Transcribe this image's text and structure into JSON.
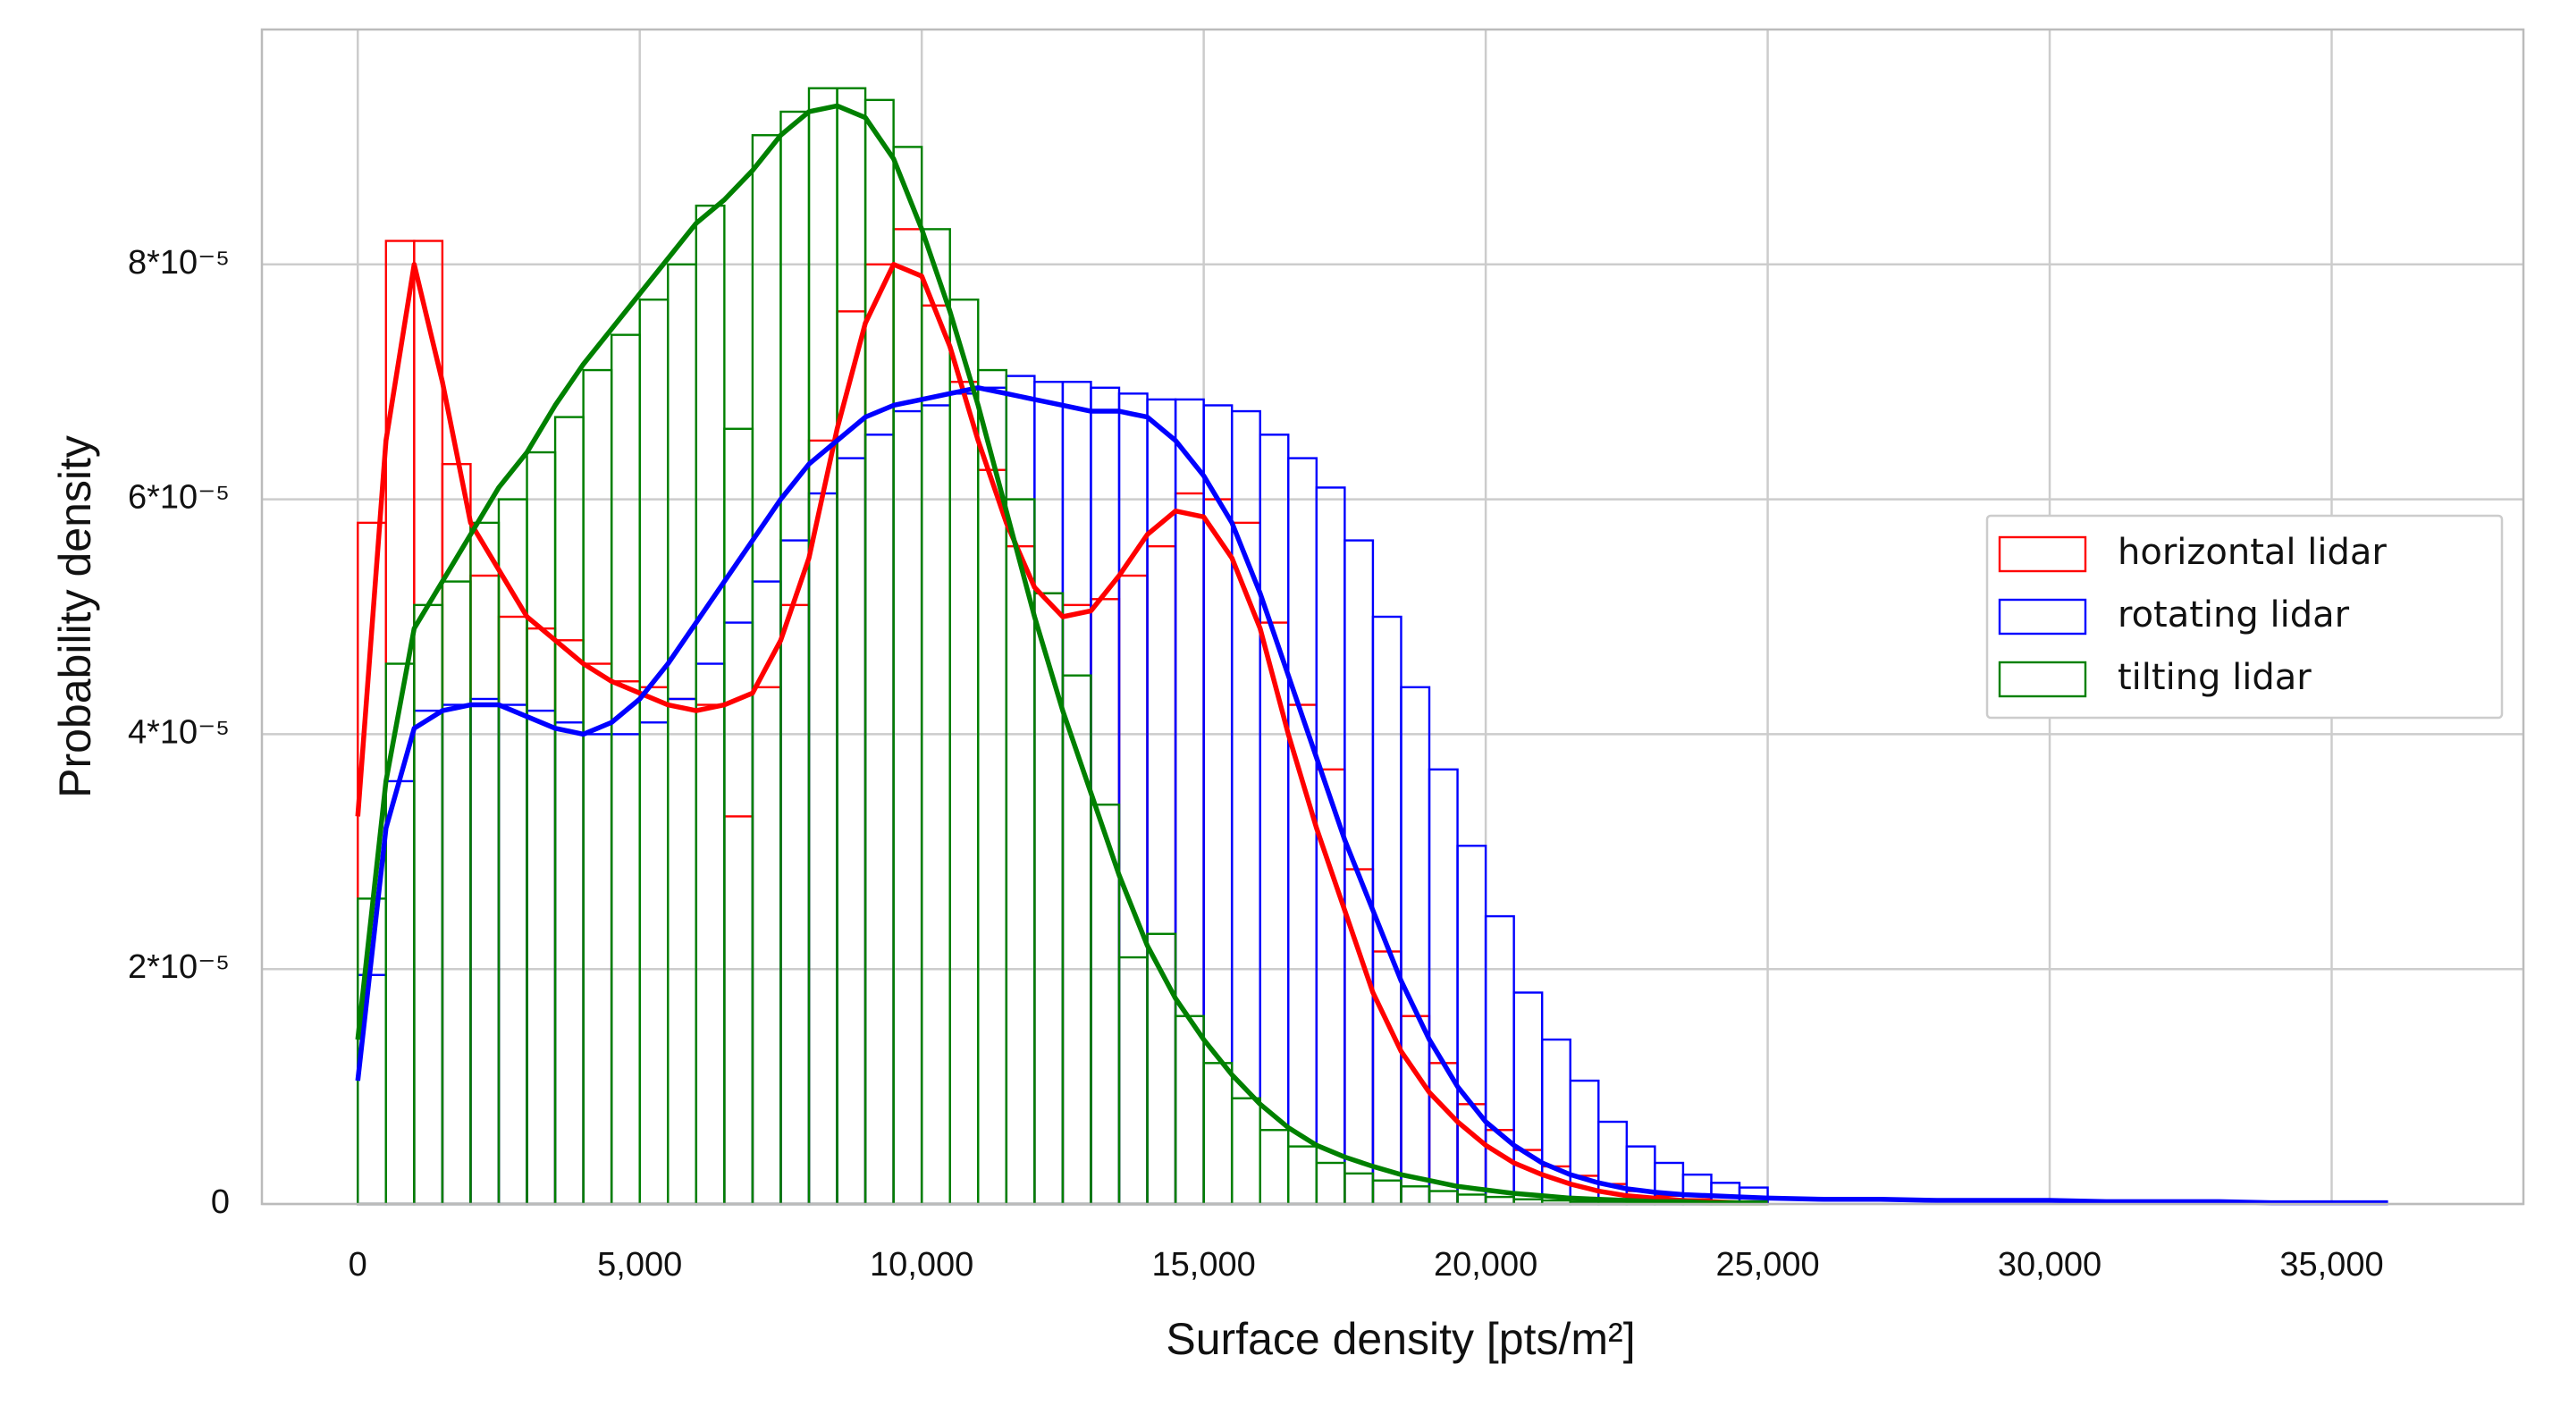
{
  "chart_data": {
    "type": "histogram",
    "xlabel": "Surface density [pts/m²]",
    "ylabel": "Probability density",
    "bins": [
      0,
      500,
      1000,
      1500,
      2000,
      2500,
      3000,
      3500,
      4000,
      4500,
      5000,
      5500,
      6000,
      6500,
      7000,
      7500,
      8000,
      8500,
      9000,
      9500,
      10000,
      10500,
      11000,
      11500,
      12000,
      12500,
      13000,
      13500,
      14000,
      14500,
      15000,
      15500,
      16000,
      16500,
      17000,
      17500,
      18000,
      18500,
      19000,
      19500,
      20000,
      20500,
      21000,
      21500,
      22000,
      22500,
      23000,
      23500,
      24000,
      24500,
      25000
    ],
    "series": [
      {
        "name": "horizontal lidar",
        "color": "#ff0000",
        "values": [
          5.8e-05,
          8.2e-05,
          8.2e-05,
          6.3e-05,
          5.35e-05,
          5e-05,
          4.9e-05,
          4.8e-05,
          4.6e-05,
          4.45e-05,
          4.4e-05,
          4.3e-05,
          4.25e-05,
          3.3e-05,
          4.4e-05,
          5.1e-05,
          6.5e-05,
          7.6e-05,
          8e-05,
          8.3e-05,
          7.65e-05,
          7e-05,
          6.25e-05,
          5.6e-05,
          5.2e-05,
          5.1e-05,
          5.15e-05,
          5.35e-05,
          5.6e-05,
          6.05e-05,
          6e-05,
          5.8e-05,
          4.95e-05,
          4.25e-05,
          3.7e-05,
          2.85e-05,
          2.15e-05,
          1.6e-05,
          1.2e-05,
          8.5e-06,
          6.3e-06,
          4.6e-06,
          3.2e-06,
          2.4e-06,
          1.7e-06,
          1.1e-06,
          7e-07,
          4e-07,
          2e-07,
          1e-07
        ]
      },
      {
        "name": "rotating lidar",
        "color": "#0000ff",
        "values": [
          1.95e-05,
          3.6e-05,
          4.2e-05,
          4.25e-05,
          4.3e-05,
          4.25e-05,
          4.2e-05,
          4.1e-05,
          4e-05,
          4e-05,
          4.1e-05,
          4.3e-05,
          4.6e-05,
          4.95e-05,
          5.3e-05,
          5.65e-05,
          6.05e-05,
          6.35e-05,
          6.55e-05,
          6.75e-05,
          6.8e-05,
          6.9e-05,
          6.95e-05,
          7.05e-05,
          7e-05,
          7e-05,
          6.95e-05,
          6.9e-05,
          6.85e-05,
          6.85e-05,
          6.8e-05,
          6.75e-05,
          6.55e-05,
          6.35e-05,
          6.1e-05,
          5.65e-05,
          5e-05,
          4.4e-05,
          3.7e-05,
          3.05e-05,
          2.45e-05,
          1.8e-05,
          1.4e-05,
          1.05e-05,
          7e-06,
          4.9e-06,
          3.5e-06,
          2.5e-06,
          1.8e-06,
          1.4e-06
        ]
      },
      {
        "name": "tilting lidar",
        "color": "#008000",
        "values": [
          2.6e-05,
          4.6e-05,
          5.1e-05,
          5.3e-05,
          5.8e-05,
          6e-05,
          6.4e-05,
          6.7e-05,
          7.1e-05,
          7.4e-05,
          7.7e-05,
          8e-05,
          8.5e-05,
          6.6e-05,
          9.1e-05,
          9.3e-05,
          9.5e-05,
          9.5e-05,
          9.4e-05,
          9e-05,
          8.3e-05,
          7.7e-05,
          7.1e-05,
          6e-05,
          5.2e-05,
          4.5e-05,
          3.4e-05,
          2.1e-05,
          2.3e-05,
          1.6e-05,
          1.2e-05,
          9e-06,
          6.3e-06,
          4.9e-06,
          3.5e-06,
          2.6e-06,
          2e-06,
          1.5e-06,
          1.1e-06,
          8e-07,
          6e-07,
          4e-07,
          3e-07,
          2e-07,
          2e-07,
          1e-07,
          1e-07,
          1e-07,
          0,
          0
        ]
      }
    ],
    "kde": {
      "x": [
        0,
        500,
        1000,
        1500,
        2000,
        2500,
        3000,
        3500,
        4000,
        4500,
        5000,
        5500,
        6000,
        6500,
        7000,
        7500,
        8000,
        8500,
        9000,
        9500,
        10000,
        10500,
        11000,
        11500,
        12000,
        12500,
        13000,
        13500,
        14000,
        14500,
        15000,
        15500,
        16000,
        16500,
        17000,
        17500,
        18000,
        18500,
        19000,
        19500,
        20000,
        20500,
        21000,
        21500,
        22000,
        22500,
        23000,
        23500,
        24000,
        24500,
        25000,
        26000,
        27000,
        28000,
        29000,
        30000,
        31000,
        32000,
        33000,
        34000,
        35000,
        36000
      ],
      "series": [
        {
          "color": "#ff0000",
          "values": [
            3.3e-05,
            6.5e-05,
            8e-05,
            7e-05,
            5.8e-05,
            5.4e-05,
            5e-05,
            4.8e-05,
            4.6e-05,
            4.45e-05,
            4.35e-05,
            4.25e-05,
            4.2e-05,
            4.25e-05,
            4.35e-05,
            4.8e-05,
            5.5e-05,
            6.6e-05,
            7.5e-05,
            8e-05,
            7.9e-05,
            7.3e-05,
            6.5e-05,
            5.8e-05,
            5.25e-05,
            5e-05,
            5.05e-05,
            5.35e-05,
            5.7e-05,
            5.9e-05,
            5.85e-05,
            5.5e-05,
            4.9e-05,
            4e-05,
            3.2e-05,
            2.5e-05,
            1.8e-05,
            1.3e-05,
            9.5e-06,
            7e-06,
            5e-06,
            3.5e-06,
            2.5e-06,
            1.7e-06,
            1.1e-06,
            7e-07,
            5e-07,
            3e-07,
            2e-07,
            1e-07,
            1e-07,
            null,
            null,
            null,
            null,
            null,
            null,
            null,
            null,
            null,
            null,
            null
          ]
        },
        {
          "color": "#0000ff",
          "values": [
            1.05e-05,
            3.2e-05,
            4.05e-05,
            4.2e-05,
            4.25e-05,
            4.25e-05,
            4.15e-05,
            4.05e-05,
            4e-05,
            4.1e-05,
            4.3e-05,
            4.6e-05,
            4.95e-05,
            5.3e-05,
            5.65e-05,
            6e-05,
            6.3e-05,
            6.5e-05,
            6.7e-05,
            6.8e-05,
            6.85e-05,
            6.9e-05,
            6.95e-05,
            6.9e-05,
            6.85e-05,
            6.8e-05,
            6.75e-05,
            6.75e-05,
            6.7e-05,
            6.5e-05,
            6.2e-05,
            5.8e-05,
            5.2e-05,
            4.5e-05,
            3.8e-05,
            3.1e-05,
            2.5e-05,
            1.9e-05,
            1.4e-05,
            1e-05,
            7e-06,
            5e-06,
            3.5e-06,
            2.5e-06,
            1.8e-06,
            1.3e-06,
            1e-06,
            8e-07,
            7e-07,
            6e-07,
            5e-07,
            4e-07,
            4e-07,
            3e-07,
            3e-07,
            3e-07,
            2e-07,
            2e-07,
            2e-07,
            1e-07,
            1e-07,
            1e-07
          ]
        },
        {
          "color": "#008000",
          "values": [
            1.4e-05,
            3.6e-05,
            4.9e-05,
            5.3e-05,
            5.7e-05,
            6.1e-05,
            6.4e-05,
            6.8e-05,
            7.15e-05,
            7.45e-05,
            7.75e-05,
            8.05e-05,
            8.35e-05,
            8.55e-05,
            8.8e-05,
            9.1e-05,
            9.3e-05,
            9.35e-05,
            9.25e-05,
            8.9e-05,
            8.3e-05,
            7.6e-05,
            6.8e-05,
            5.9e-05,
            5e-05,
            4.2e-05,
            3.5e-05,
            2.8e-05,
            2.2e-05,
            1.75e-05,
            1.4e-05,
            1.1e-05,
            8.5e-06,
            6.5e-06,
            5e-06,
            4e-06,
            3.2e-06,
            2.5e-06,
            2e-06,
            1.5e-06,
            1.2e-06,
            9e-07,
            7e-07,
            5e-07,
            4e-07,
            3e-07,
            2e-07,
            2e-07,
            1e-07,
            1e-07,
            1e-07,
            null,
            null,
            null,
            null,
            null,
            null,
            null,
            null,
            null,
            null,
            null
          ]
        }
      ]
    },
    "xlim": [
      -1700,
      38400
    ],
    "ylim": [
      0,
      0.0001
    ],
    "xticks": [
      0,
      {
        "value": 5000,
        "label": "5,000"
      },
      {
        "value": 10000,
        "label": "10,000"
      },
      {
        "value": 15000,
        "label": "15,000"
      },
      {
        "value": 20000,
        "label": "20,000"
      },
      {
        "value": 25000,
        "label": "25,000"
      },
      {
        "value": 30000,
        "label": "30,000"
      },
      {
        "value": 35000,
        "label": "35,000"
      }
    ],
    "yticks": [
      0,
      {
        "value": 2e-05,
        "label": "2*10⁻⁵"
      },
      {
        "value": 4e-05,
        "label": "4*10⁻⁵"
      },
      {
        "value": 6e-05,
        "label": "6*10⁻⁵"
      },
      {
        "value": 8e-05,
        "label": "8*10⁻⁵"
      }
    ],
    "grid": true,
    "legend": "center right"
  }
}
